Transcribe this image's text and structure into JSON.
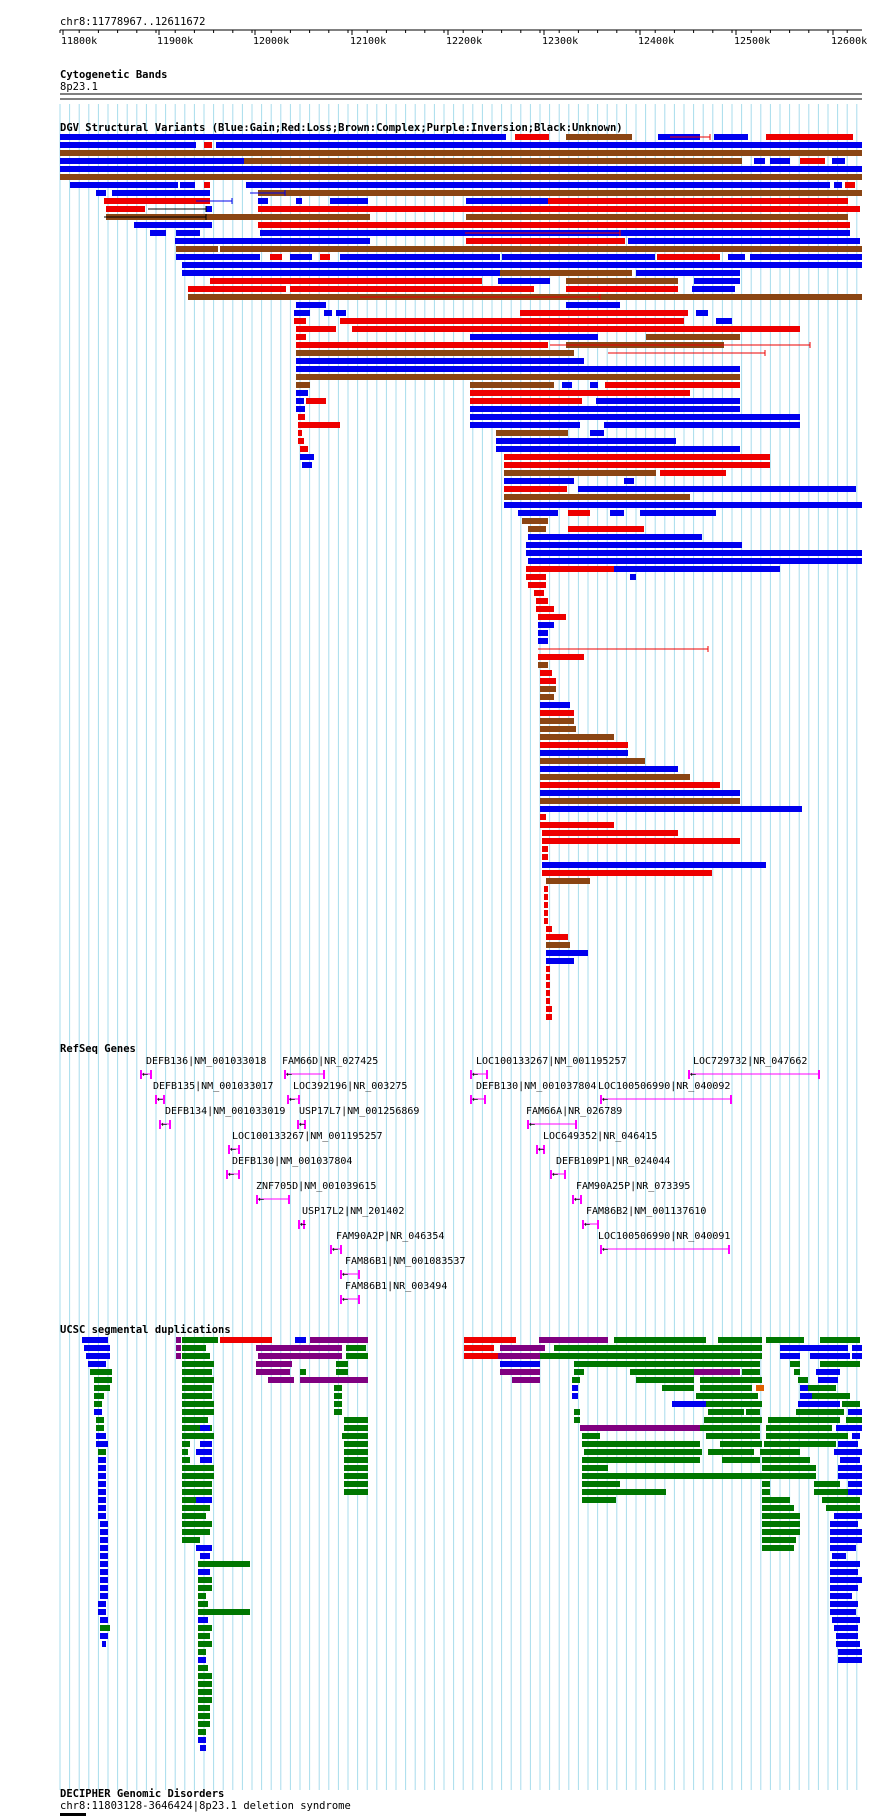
{
  "locus": "chr8:11778967..12611672",
  "ruler": {
    "ticks": [
      "11800k",
      "11900k",
      "12000k",
      "12100k",
      "12200k",
      "12300k",
      "12400k",
      "12500k",
      "12600k"
    ]
  },
  "tracks": {
    "cytoband": {
      "title": "Cytogenetic Bands",
      "band": "8p23.1"
    },
    "dgv": {
      "title": "DGV Structural Variants (Blue:Gain;Red:Loss;Brown:Complex;Purple:Inversion;Black:Unknown)"
    },
    "refseq": {
      "title": "RefSeq Genes"
    },
    "segdup": {
      "title": "UCSC segmental duplications"
    },
    "decipher": {
      "title": "DECIPHER Genomic Disorders",
      "feature": "chr8:11803128-3646424|8p23.1 deletion syndrome"
    }
  },
  "colors": {
    "gain": "#0000ee",
    "loss": "#ee0000",
    "complex": "#8b4513",
    "inversion": "#800080",
    "unknown": "#000000",
    "gene": "#ff00ff",
    "segdup_green": "#007700",
    "grid": "#a8dcec"
  },
  "genes": [
    {
      "label": "DEFB136|NM_001033018"
    },
    {
      "label": "FAM66D|NR_027425"
    },
    {
      "label": "DEFB135|NM_001033017"
    },
    {
      "label": "LOC392196|NR_003275"
    },
    {
      "label": "DEFB134|NM_001033019"
    },
    {
      "label": "USP17L7|NM_001256869"
    },
    {
      "label": "LOC100133267|NM_001195257"
    },
    {
      "label": "DEFB130|NM_001037804"
    },
    {
      "label": "ZNF705D|NM_001039615"
    },
    {
      "label": "USP17L2|NM_201402"
    },
    {
      "label": "FAM90A2P|NR_046354"
    },
    {
      "label": "FAM86B1|NM_001083537"
    },
    {
      "label": "FAM86B1|NR_003494"
    },
    {
      "label": "LOC100133267|NM_001195257"
    },
    {
      "label": "LOC729732|NR_047662"
    },
    {
      "label": "DEFB130|NM_001037804"
    },
    {
      "label": "LOC100506990|NR_040092"
    },
    {
      "label": "FAM66A|NR_026789"
    },
    {
      "label": "LOC649352|NR_046415"
    },
    {
      "label": "DEFB109P1|NR_024044"
    },
    {
      "label": "FAM90A25P|NR_073395"
    },
    {
      "label": "FAM86B2|NM_001137610"
    },
    {
      "label": "LOC100506990|NR_040091"
    }
  ]
}
